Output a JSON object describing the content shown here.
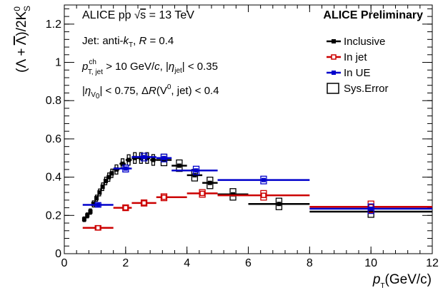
{
  "chart_data": {
    "type": "scatter",
    "xlim": [
      0,
      12
    ],
    "ylim": [
      0,
      1.3
    ],
    "x_ticks": [
      0,
      2,
      4,
      6,
      8,
      10,
      12
    ],
    "y_ticks": [
      0,
      0.2,
      0.4,
      0.6,
      0.8,
      1,
      1.2
    ],
    "x_tick_labels": [
      "0",
      "2",
      "4",
      "6",
      "8",
      "10",
      "12"
    ],
    "y_tick_labels": [
      "0",
      "0.2",
      "0.4",
      "0.6",
      "0.8",
      "1",
      "1.2"
    ],
    "xlabel": {
      "main": "p",
      "sub": "T",
      "rest": "(GeV/c)"
    },
    "ylabel": "(Λ + Λ̄)/2K⁰S",
    "legend_position": "top-right",
    "annotations": {
      "system": "ALICE pp √s = 13 TeV",
      "preliminary": "ALICE Preliminary",
      "jet_def": "Jet: anti-kT, R = 0.4",
      "pt_cut": "pT,jet ch > 10 GeV/c, |ηjet| < 0.35",
      "v0_cut": "|ηV0| < 0.75, ΔR(V0, jet) < 0.4"
    },
    "legend": [
      {
        "label": "Inclusive",
        "color": "#000000",
        "marker": "filled-square"
      },
      {
        "label": "In jet",
        "color": "#cc0000",
        "marker": "open-square"
      },
      {
        "label": "In UE",
        "color": "#0000cc",
        "marker": "filled-square"
      },
      {
        "label": "Sys.Error",
        "color": "#000000",
        "marker": "open-box"
      }
    ],
    "series": [
      {
        "name": "Inclusive",
        "color": "#000000",
        "points": [
          {
            "x": 0.65,
            "xl": 0.6,
            "xh": 0.7,
            "y": 0.18,
            "e": 0.012
          },
          {
            "x": 0.75,
            "xl": 0.7,
            "xh": 0.8,
            "y": 0.2,
            "e": 0.013
          },
          {
            "x": 0.85,
            "xl": 0.8,
            "xh": 0.9,
            "y": 0.22,
            "e": 0.014
          },
          {
            "x": 0.95,
            "xl": 0.9,
            "xh": 1.0,
            "y": 0.26,
            "e": 0.016
          },
          {
            "x": 1.05,
            "xl": 1.0,
            "xh": 1.1,
            "y": 0.29,
            "e": 0.016
          },
          {
            "x": 1.15,
            "xl": 1.1,
            "xh": 1.2,
            "y": 0.32,
            "e": 0.018
          },
          {
            "x": 1.25,
            "xl": 1.2,
            "xh": 1.3,
            "y": 0.35,
            "e": 0.02
          },
          {
            "x": 1.35,
            "xl": 1.3,
            "xh": 1.4,
            "y": 0.38,
            "e": 0.02
          },
          {
            "x": 1.45,
            "xl": 1.4,
            "xh": 1.5,
            "y": 0.4,
            "e": 0.022
          },
          {
            "x": 1.55,
            "xl": 1.5,
            "xh": 1.6,
            "y": 0.42,
            "e": 0.022
          },
          {
            "x": 1.7,
            "xl": 1.6,
            "xh": 1.8,
            "y": 0.44,
            "e": 0.024
          },
          {
            "x": 1.9,
            "xl": 1.8,
            "xh": 2.0,
            "y": 0.47,
            "e": 0.026
          },
          {
            "x": 2.1,
            "xl": 2.0,
            "xh": 2.2,
            "y": 0.49,
            "e": 0.027
          },
          {
            "x": 2.3,
            "xl": 2.2,
            "xh": 2.4,
            "y": 0.5,
            "e": 0.028
          },
          {
            "x": 2.5,
            "xl": 2.4,
            "xh": 2.6,
            "y": 0.5,
            "e": 0.028
          },
          {
            "x": 2.7,
            "xl": 2.6,
            "xh": 2.8,
            "y": 0.5,
            "e": 0.028
          },
          {
            "x": 2.9,
            "xl": 2.8,
            "xh": 3.0,
            "y": 0.49,
            "e": 0.028
          },
          {
            "x": 3.25,
            "xl": 3.0,
            "xh": 3.5,
            "y": 0.49,
            "e": 0.03
          },
          {
            "x": 3.75,
            "xl": 3.5,
            "xh": 4.0,
            "y": 0.46,
            "e": 0.03
          },
          {
            "x": 4.25,
            "xl": 4.0,
            "xh": 4.5,
            "y": 0.41,
            "e": 0.03
          },
          {
            "x": 4.75,
            "xl": 4.5,
            "xh": 5.0,
            "y": 0.37,
            "e": 0.03
          },
          {
            "x": 5.5,
            "xl": 5.0,
            "xh": 6.0,
            "y": 0.31,
            "e": 0.03
          },
          {
            "x": 7.0,
            "xl": 6.0,
            "xh": 8.0,
            "y": 0.26,
            "e": 0.03
          },
          {
            "x": 10.0,
            "xl": 8.0,
            "xh": 12.0,
            "y": 0.22,
            "e": 0.03
          }
        ]
      },
      {
        "name": "In jet",
        "color": "#cc0000",
        "points": [
          {
            "x": 1.1,
            "xl": 0.6,
            "xh": 1.6,
            "y": 0.135,
            "e": 0.012
          },
          {
            "x": 2.0,
            "xl": 1.6,
            "xh": 2.2,
            "y": 0.24,
            "e": 0.015
          },
          {
            "x": 2.6,
            "xl": 2.2,
            "xh": 3.0,
            "y": 0.265,
            "e": 0.016
          },
          {
            "x": 3.25,
            "xl": 3.0,
            "xh": 4.0,
            "y": 0.295,
            "e": 0.018
          },
          {
            "x": 4.5,
            "xl": 4.0,
            "xh": 5.0,
            "y": 0.315,
            "e": 0.02
          },
          {
            "x": 6.5,
            "xl": 5.0,
            "xh": 8.0,
            "y": 0.305,
            "e": 0.025
          },
          {
            "x": 10.0,
            "xl": 8.0,
            "xh": 12.0,
            "y": 0.245,
            "e": 0.03
          }
        ]
      },
      {
        "name": "In UE",
        "color": "#0000cc",
        "points": [
          {
            "x": 1.1,
            "xl": 0.6,
            "xh": 1.6,
            "y": 0.255,
            "e": 0.012
          },
          {
            "x": 2.0,
            "xl": 1.6,
            "xh": 2.2,
            "y": 0.445,
            "e": 0.018
          },
          {
            "x": 2.6,
            "xl": 2.2,
            "xh": 3.0,
            "y": 0.505,
            "e": 0.02
          },
          {
            "x": 3.25,
            "xl": 3.0,
            "xh": 3.5,
            "y": 0.5,
            "e": 0.02
          },
          {
            "x": 4.3,
            "xl": 3.5,
            "xh": 5.0,
            "y": 0.435,
            "e": 0.022
          },
          {
            "x": 6.5,
            "xl": 5.0,
            "xh": 8.0,
            "y": 0.385,
            "e": 0.02
          },
          {
            "x": 10.0,
            "xl": 8.0,
            "xh": 12.0,
            "y": 0.235,
            "e": 0.025
          }
        ]
      }
    ]
  }
}
